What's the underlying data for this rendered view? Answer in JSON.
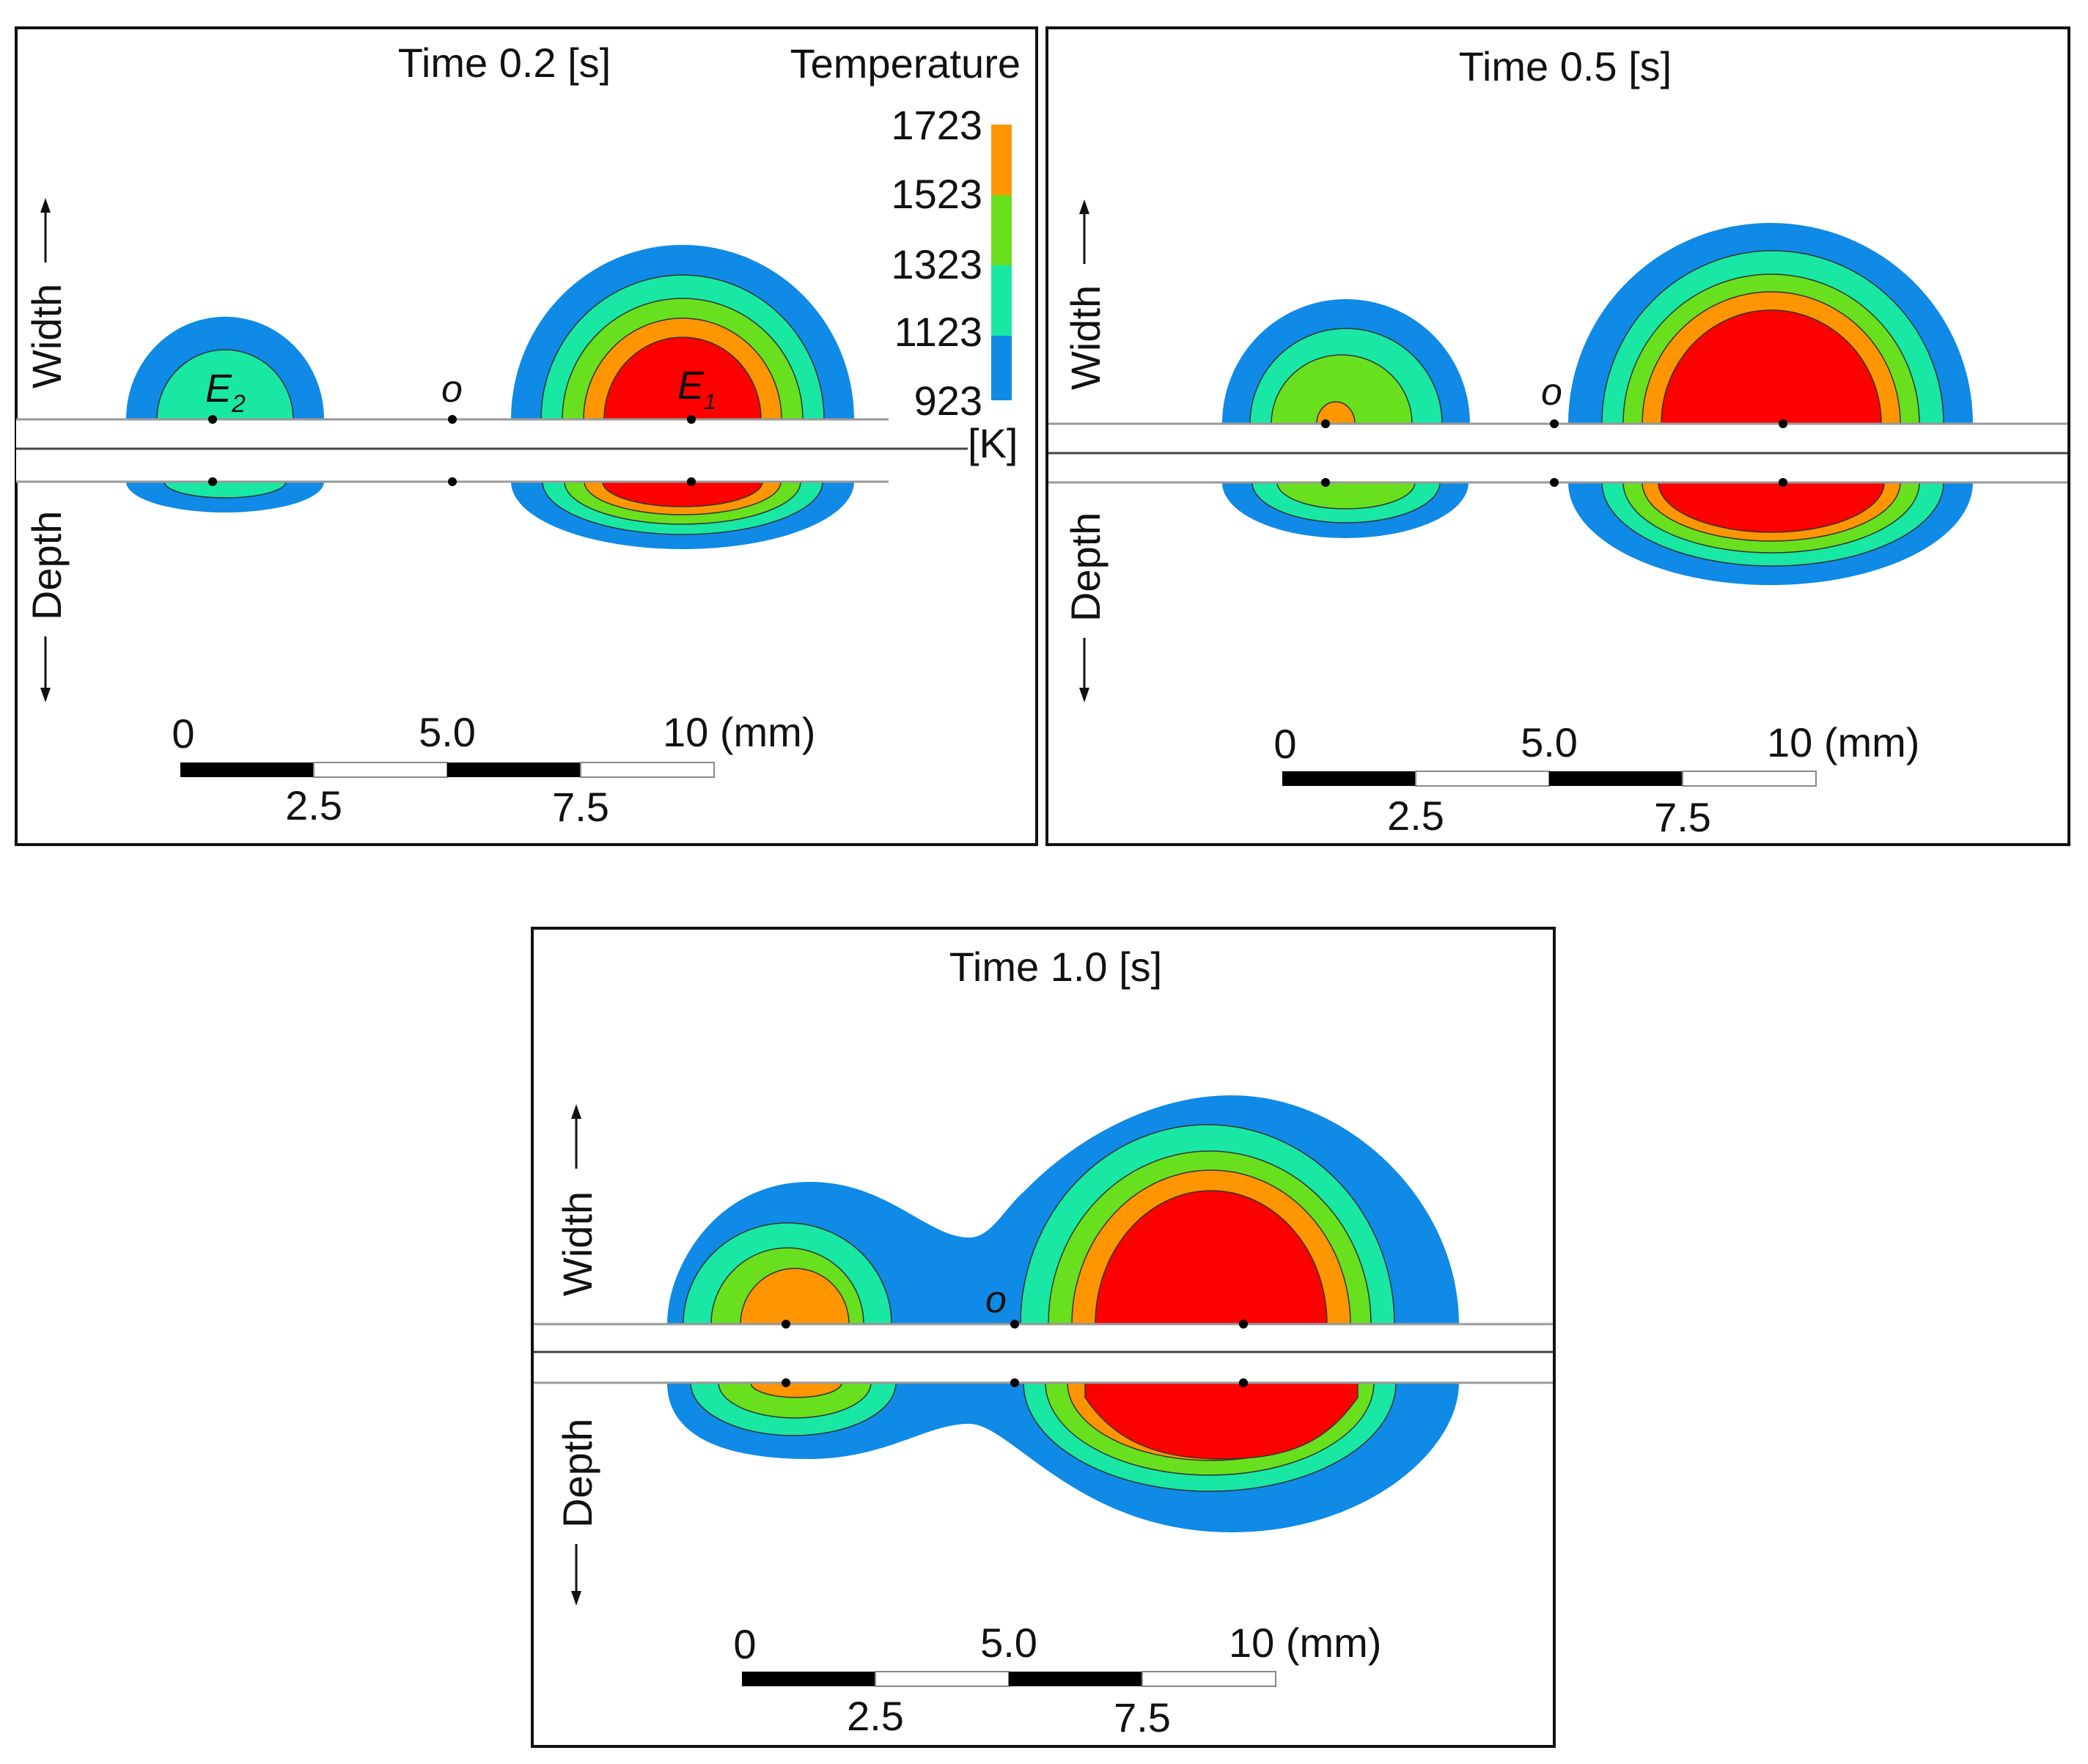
{
  "panels": [
    {
      "id": "t02",
      "title": "Time 0.2 [s]"
    },
    {
      "id": "t05",
      "title": "Time 0.5 [s]"
    },
    {
      "id": "t10",
      "title": "Time 1.0 [s]"
    }
  ],
  "axis_labels": {
    "width": "Width",
    "depth": "Depth"
  },
  "points": {
    "e1_main": "E",
    "e1_sub": "1",
    "e2_main": "E",
    "e2_sub": "2",
    "o": "o"
  },
  "scale_bar": {
    "top": [
      "0",
      "5.0",
      "10 (mm)"
    ],
    "bottom": [
      "2.5",
      "7.5"
    ]
  },
  "legend": {
    "title": "Temperature",
    "ticks": [
      "1723",
      "1523",
      "1323",
      "1123",
      "923"
    ],
    "unit": "[K]"
  },
  "colors": {
    "band_923": "#0f8ae6",
    "band_1123": "#18e8a4",
    "band_1323": "#68e01e",
    "band_1523": "#ff9500",
    "band_1723": "#ff0000"
  }
}
